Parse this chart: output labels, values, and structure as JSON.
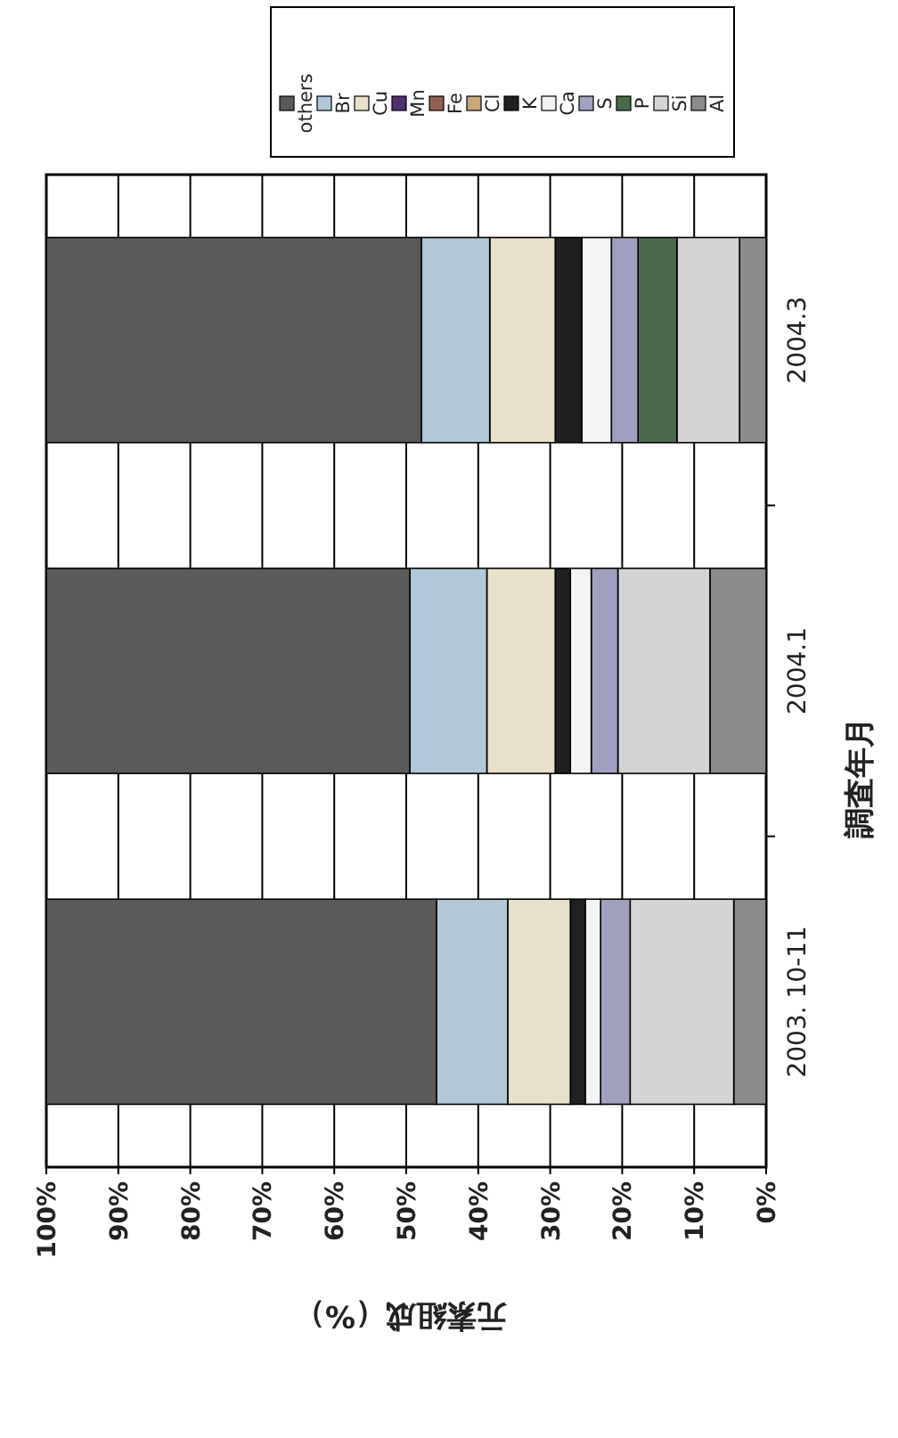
{
  "chart_data": {
    "type": "bar",
    "stacked": true,
    "orientation": "horizontal",
    "xlabel": "元素組成（%）",
    "ylabel": "調査年月",
    "categories": [
      "2004.3",
      "2004.1",
      "2003. 10-11"
    ],
    "xlim": [
      100,
      0
    ],
    "xticks": [
      {
        "value": 100,
        "label": "100%"
      },
      {
        "value": 90,
        "label": "90%"
      },
      {
        "value": 80,
        "label": "80%"
      },
      {
        "value": 70,
        "label": "70%"
      },
      {
        "value": 60,
        "label": "60%"
      },
      {
        "value": 50,
        "label": "50%"
      },
      {
        "value": 40,
        "label": "40%"
      },
      {
        "value": 30,
        "label": "30%"
      },
      {
        "value": 20,
        "label": "20%"
      },
      {
        "value": 10,
        "label": "10%"
      },
      {
        "value": 0,
        "label": "0%"
      }
    ],
    "grid": "x",
    "legend": "top right",
    "series": [
      {
        "name": "Al",
        "color": "#8c8c8c",
        "values": [
          3.7,
          7.8,
          4.5
        ]
      },
      {
        "name": "Si",
        "color": "#d4d4d4",
        "values": [
          8.7,
          12.8,
          14.4
        ]
      },
      {
        "name": "P",
        "color": "#4a6a4a",
        "values": [
          5.4,
          0,
          0
        ]
      },
      {
        "name": "S",
        "color": "#a0a0c0",
        "values": [
          3.7,
          3.7,
          4.1
        ]
      },
      {
        "name": "Ca",
        "color": "#f4f4f4",
        "values": [
          4.1,
          2.9,
          2.1
        ]
      },
      {
        "name": "K",
        "color": "#202020",
        "values": [
          3.7,
          2.1,
          2.1
        ]
      },
      {
        "name": "Cl",
        "color": "#c8a878",
        "values": [
          0,
          0,
          0
        ]
      },
      {
        "name": "Fe",
        "color": "#906050",
        "values": [
          0,
          0,
          0
        ]
      },
      {
        "name": "Mn",
        "color": "#503070",
        "values": [
          0,
          0,
          0
        ]
      },
      {
        "name": "Cu",
        "color": "#e8e0c8",
        "values": [
          9.1,
          9.5,
          8.7
        ]
      },
      {
        "name": "Br",
        "color": "#b0c8d8",
        "values": [
          9.5,
          10.7,
          9.9
        ]
      },
      {
        "name": "others",
        "color": "#5a5a5a",
        "values": [
          52.1,
          50.5,
          54.2
        ]
      }
    ]
  }
}
